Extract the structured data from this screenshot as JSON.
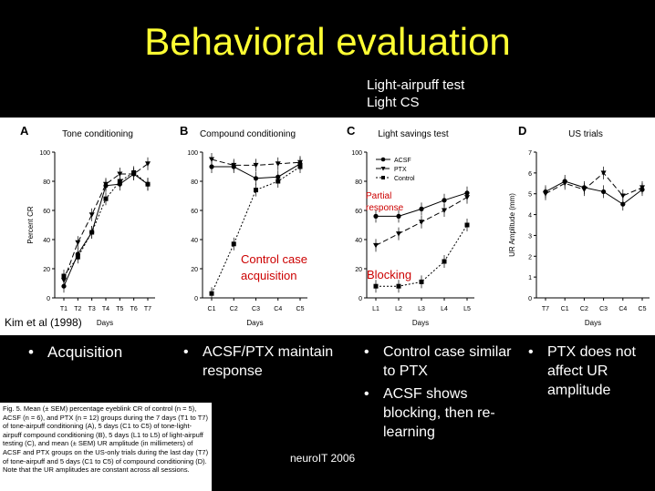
{
  "title": "Behavioral evaluation",
  "top_note": [
    "Light-airpuff test",
    "Light CS"
  ],
  "citation": "Kim et al (1998)",
  "footer": "neuroIT 2006",
  "caption": "Fig. 5. Mean (± SEM) percentage eyeblink CR of control (n = 5), ACSF (n = 6), and PTX (n = 12) groups during the 7 days (T1 to T7) of tone-airpuff conditioning (A), 5 days (C1 to C5) of tone-light-airpuff compound conditioning (B), 5 days (L1 to L5) of light-airpuff testing (C), and mean (± SEM) UR amplitude (in millimeters) of ACSF and PTX groups on the US-only trials during the last day (T7) of tone-airpuff and 5 days (C1 to C5) of compound conditioning (D). Note that the UR amplitudes are constant across all sessions.",
  "bullets": [
    [
      "Acquisition"
    ],
    [
      "ACSF/PTX maintain response"
    ],
    [
      "Control case similar to PTX",
      "ACSF shows blocking, then re-learning"
    ],
    [
      "PTX does not affect UR amplitude"
    ]
  ],
  "annotations": {
    "control_case": [
      "Control case",
      "acquisition"
    ],
    "partial": [
      "Partial",
      "response"
    ],
    "blocking": "Blocking"
  },
  "colors": {
    "title": "#ffff33",
    "annotation": "#cc0000",
    "background": "#000000"
  },
  "chart_data": [
    {
      "type": "line",
      "panel": "A",
      "title": "Tone conditioning",
      "xlabel": "Days",
      "ylabel": "Percent CR",
      "categories": [
        "T1",
        "T2",
        "T3",
        "T4",
        "T5",
        "T6",
        "T7"
      ],
      "ylim": [
        0,
        100
      ],
      "yticks": [
        0,
        20,
        40,
        60,
        80,
        100
      ],
      "series": [
        {
          "values": [
            8,
            30,
            45,
            77,
            78,
            85,
            78
          ],
          "marker": "circle"
        },
        {
          "values": [
            12,
            38,
            57,
            78,
            85,
            85,
            92
          ],
          "marker": "triangle-down"
        },
        {
          "values": [
            15,
            28,
            45,
            68,
            80,
            86,
            78
          ],
          "marker": "square"
        }
      ]
    },
    {
      "type": "line",
      "panel": "B",
      "title": "Compound conditioning",
      "xlabel": "Days",
      "categories": [
        "C1",
        "C2",
        "C3",
        "C4",
        "C5"
      ],
      "ylim": [
        0,
        100
      ],
      "yticks": [
        0,
        20,
        40,
        60,
        80,
        100
      ],
      "series": [
        {
          "values": [
            90,
            90,
            82,
            83,
            92
          ],
          "marker": "circle"
        },
        {
          "values": [
            95,
            91,
            91,
            92,
            93
          ],
          "marker": "triangle-down"
        },
        {
          "values": [
            3,
            37,
            74,
            80,
            90
          ],
          "marker": "square"
        }
      ]
    },
    {
      "type": "line",
      "panel": "C",
      "title": "Light savings test",
      "xlabel": "Days",
      "categories": [
        "L1",
        "L2",
        "L3",
        "L4",
        "L5"
      ],
      "ylim": [
        0,
        100
      ],
      "yticks": [
        0,
        20,
        40,
        60,
        80,
        100
      ],
      "legend": [
        "ACSF",
        "PTX",
        "Control"
      ],
      "series": [
        {
          "name": "ACSF",
          "values": [
            56,
            56,
            61,
            67,
            72
          ],
          "marker": "circle"
        },
        {
          "name": "PTX",
          "values": [
            36,
            44,
            52,
            60,
            69
          ],
          "marker": "triangle-down"
        },
        {
          "name": "Control",
          "values": [
            8,
            8,
            11,
            25,
            50
          ],
          "marker": "square"
        }
      ]
    },
    {
      "type": "line",
      "panel": "D",
      "title": "US trials",
      "xlabel": "Days",
      "ylabel": "UR Amplitude (mm)",
      "categories": [
        "T7",
        "C1",
        "C2",
        "C3",
        "C4",
        "C5"
      ],
      "ylim": [
        0,
        7
      ],
      "yticks": [
        0,
        1,
        2,
        3,
        4,
        5,
        6,
        7
      ],
      "series": [
        {
          "values": [
            5.1,
            5.6,
            5.3,
            5.1,
            4.5,
            5.2
          ],
          "marker": "circle"
        },
        {
          "values": [
            5.0,
            5.5,
            5.2,
            6.0,
            4.9,
            5.3
          ],
          "marker": "triangle-down"
        }
      ]
    }
  ]
}
